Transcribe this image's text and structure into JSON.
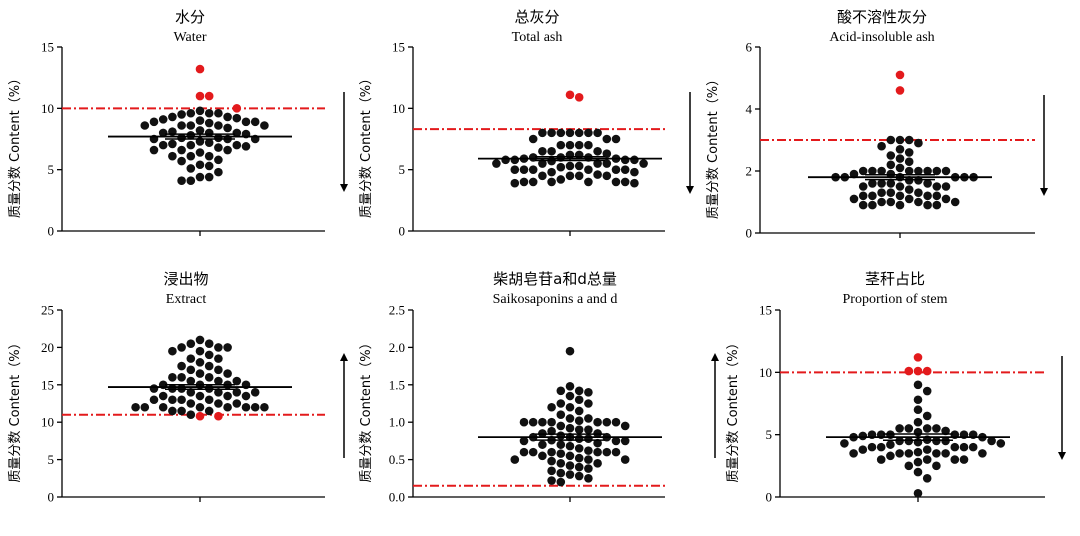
{
  "colors": {
    "dots": "#111111",
    "outlier": "#e31a1c",
    "threshold": "#e31a1c",
    "axis": "#000000",
    "text": "#000000"
  },
  "y_axis_label": "质量分数 Content（%）",
  "chart_data": [
    {
      "type": "scatter",
      "title_cn": "水分",
      "title_en": "Water",
      "ylim": [
        0,
        15
      ],
      "yticks": [
        0,
        5,
        10,
        15
      ],
      "ytick_labels": [
        "0",
        "5",
        "10",
        "15"
      ],
      "threshold": 10.0,
      "mean": 7.7,
      "sem": 0.2,
      "arrow": "down",
      "values": [
        9.6,
        9.6,
        9.8,
        9.6,
        9.5,
        9.3,
        9.3,
        9.2,
        9.1,
        9.0,
        8.9,
        8.9,
        8.9,
        8.8,
        8.6,
        8.6,
        8.6,
        8.6,
        8.6,
        8.4,
        8.2,
        8.1,
        8.0,
        8.0,
        8.0,
        7.9,
        7.8,
        7.6,
        7.6,
        7.5,
        7.5,
        7.5,
        7.3,
        7.2,
        7.1,
        7.0,
        7.0,
        7.0,
        6.9,
        6.8,
        6.6,
        6.6,
        6.6,
        6.4,
        6.1,
        6.1,
        6.1,
        5.8,
        5.7,
        5.4,
        5.3,
        5.1,
        4.8,
        4.4,
        4.4,
        4.1,
        4.1
      ],
      "outliers": [
        13.2,
        11.0,
        11.0,
        10.0
      ]
    },
    {
      "type": "scatter",
      "title_cn": "总灰分",
      "title_en": "Total ash",
      "ylim": [
        0,
        15
      ],
      "yticks": [
        0,
        5,
        10,
        15
      ],
      "ytick_labels": [
        "0",
        "5",
        "10",
        "15"
      ],
      "threshold": 8.3,
      "mean": 5.9,
      "sem": 0.15,
      "arrow": "down",
      "values": [
        8.0,
        8.0,
        8.0,
        8.0,
        8.0,
        8.0,
        8.0,
        7.5,
        7.5,
        7.5,
        7.0,
        7.0,
        7.0,
        7.0,
        6.5,
        6.5,
        6.5,
        6.3,
        6.2,
        6.2,
        6.0,
        6.0,
        6.0,
        5.9,
        5.9,
        5.8,
        5.8,
        5.8,
        5.8,
        5.7,
        5.5,
        5.5,
        5.5,
        5.5,
        5.5,
        5.3,
        5.3,
        5.2,
        5.0,
        5.0,
        5.0,
        5.0,
        5.0,
        5.0,
        4.8,
        4.8,
        4.6,
        4.5,
        4.5,
        4.5,
        4.5,
        4.2,
        4.0,
        4.0,
        4.0,
        4.0,
        4.0,
        4.0,
        3.9,
        3.9
      ],
      "outliers": [
        11.1,
        10.9
      ]
    },
    {
      "type": "scatter",
      "title_cn": "酸不溶性灰分",
      "title_en": "Acid-insoluble ash",
      "ylim": [
        0,
        6
      ],
      "yticks": [
        0,
        2,
        4,
        6
      ],
      "ytick_labels": [
        "0",
        "2",
        "4",
        "6"
      ],
      "threshold": 3.0,
      "mean": 1.8,
      "sem": 0.08,
      "arrow": "down",
      "values": [
        3.0,
        3.0,
        3.0,
        2.9,
        2.8,
        2.7,
        2.6,
        2.5,
        2.4,
        2.3,
        2.2,
        2.1,
        2.0,
        2.0,
        2.0,
        2.0,
        2.0,
        2.0,
        2.0,
        2.0,
        1.9,
        1.9,
        1.8,
        1.8,
        1.8,
        1.8,
        1.8,
        1.8,
        1.7,
        1.7,
        1.6,
        1.6,
        1.6,
        1.6,
        1.5,
        1.5,
        1.5,
        1.5,
        1.4,
        1.3,
        1.3,
        1.3,
        1.2,
        1.2,
        1.2,
        1.2,
        1.2,
        1.1,
        1.1,
        1.1,
        1.0,
        1.0,
        1.0,
        1.0,
        0.9,
        0.9,
        0.9,
        0.9,
        0.9
      ],
      "outliers": [
        5.1,
        4.6
      ]
    },
    {
      "type": "scatter",
      "title_cn": "浸出物",
      "title_en": "Extract",
      "ylim": [
        0,
        25
      ],
      "yticks": [
        0,
        5,
        10,
        15,
        20,
        25
      ],
      "ytick_labels": [
        "0",
        "5",
        "10",
        "15",
        "20",
        "25"
      ],
      "threshold": 11.0,
      "mean": 14.7,
      "sem": 0.3,
      "arrow": "up",
      "values": [
        21.0,
        20.5,
        20.5,
        20.0,
        20.0,
        20.0,
        19.5,
        19.5,
        19.0,
        18.5,
        18.5,
        18.0,
        17.5,
        17.5,
        17.0,
        17.0,
        16.5,
        16.5,
        16.0,
        16.0,
        16.0,
        15.5,
        15.5,
        15.5,
        15.0,
        15.0,
        15.0,
        15.0,
        14.5,
        14.5,
        14.5,
        14.5,
        14.0,
        14.0,
        14.0,
        14.0,
        13.5,
        13.5,
        13.5,
        13.5,
        13.0,
        13.0,
        13.0,
        13.0,
        12.5,
        12.5,
        12.5,
        12.0,
        12.0,
        12.0,
        12.0,
        12.0,
        12.0,
        12.0,
        12.0,
        11.5,
        11.5,
        11.5,
        11.0
      ],
      "outliers": [
        10.8,
        10.8
      ]
    },
    {
      "type": "scatter",
      "title_cn": "柴胡皂苷a和d总量",
      "title_en": "Saikosaponins a and d",
      "ylim": [
        0,
        2.5
      ],
      "yticks": [
        0,
        0.5,
        1.0,
        1.5,
        2.0,
        2.5
      ],
      "ytick_labels": [
        "0.0",
        "0.5",
        "1.0",
        "1.5",
        "2.0",
        "2.5"
      ],
      "threshold": 0.15,
      "mean": 0.8,
      "sem": 0.04,
      "arrow": "up",
      "values": [
        1.95,
        1.48,
        1.42,
        1.42,
        1.4,
        1.35,
        1.3,
        1.25,
        1.25,
        1.2,
        1.2,
        1.15,
        1.1,
        1.05,
        1.05,
        1.02,
        1.0,
        1.0,
        1.0,
        1.0,
        1.0,
        1.0,
        1.0,
        0.95,
        0.95,
        0.92,
        0.9,
        0.9,
        0.88,
        0.85,
        0.85,
        0.82,
        0.8,
        0.8,
        0.8,
        0.78,
        0.78,
        0.76,
        0.75,
        0.75,
        0.75,
        0.72,
        0.7,
        0.7,
        0.68,
        0.65,
        0.62,
        0.6,
        0.6,
        0.6,
        0.6,
        0.6,
        0.6,
        0.58,
        0.55,
        0.55,
        0.52,
        0.5,
        0.5,
        0.5,
        0.48,
        0.45,
        0.45,
        0.42,
        0.4,
        0.38,
        0.35,
        0.32,
        0.3,
        0.28,
        0.25,
        0.22,
        0.2
      ],
      "outliers": []
    },
    {
      "type": "scatter",
      "title_cn": "茎秆占比",
      "title_en": "Proportion of stem",
      "ylim": [
        0,
        15
      ],
      "yticks": [
        0,
        5,
        10,
        15
      ],
      "ytick_labels": [
        "0",
        "5",
        "10",
        "15"
      ],
      "threshold": 10.0,
      "mean": 4.8,
      "sem": 0.25,
      "arrow": "down",
      "values": [
        9.0,
        8.5,
        7.8,
        7.0,
        6.5,
        6.0,
        5.5,
        5.5,
        5.5,
        5.5,
        5.3,
        5.2,
        5.0,
        5.0,
        5.0,
        5.0,
        5.0,
        5.0,
        4.9,
        4.8,
        4.8,
        4.6,
        4.5,
        4.5,
        4.5,
        4.5,
        4.5,
        4.4,
        4.3,
        4.3,
        4.2,
        4.0,
        4.0,
        4.0,
        4.0,
        4.0,
        3.8,
        3.8,
        3.6,
        3.5,
        3.5,
        3.5,
        3.5,
        3.5,
        3.5,
        3.3,
        3.0,
        3.0,
        3.0,
        3.0,
        2.8,
        2.5,
        2.5,
        2.0,
        1.5,
        0.3
      ],
      "outliers": [
        11.2,
        10.1,
        10.1,
        10.1
      ]
    }
  ]
}
